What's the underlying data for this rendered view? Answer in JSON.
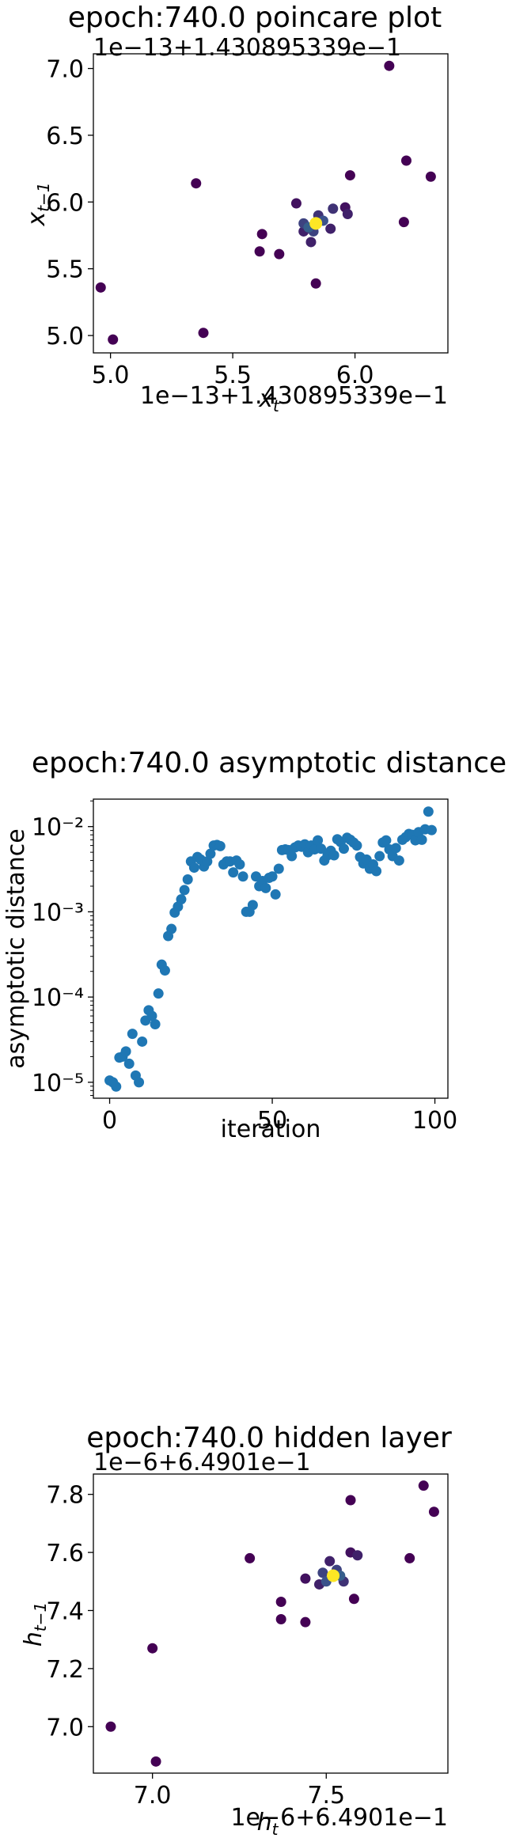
{
  "chart_data": [
    {
      "type": "scatter",
      "title": "epoch:740.0 poincare plot",
      "offset_label": "1e−13+1.430895339e−1",
      "x_offset_label": "1e−13+1.430895339e−1",
      "xlabel": "x_t",
      "ylabel": "x_{t−1}",
      "xlim": [
        4.93,
        6.38
      ],
      "ylim": [
        4.87,
        7.11
      ],
      "xticks": [
        5.0,
        5.5,
        6.0
      ],
      "xtick_labels": [
        "5.0",
        "5.5",
        "6.0"
      ],
      "yticks": [
        5.0,
        5.5,
        6.0,
        6.5,
        7.0
      ],
      "ytick_labels": [
        "5.0",
        "5.5",
        "6.0",
        "6.5",
        "7.0"
      ],
      "colormap": [
        "#440154",
        "#3b528b",
        "#21918c",
        "#5ec962",
        "#fde725"
      ],
      "grid": false,
      "points": [
        {
          "x": 6.14,
          "y": 7.02,
          "c": 0.0
        },
        {
          "x": 6.21,
          "y": 6.31,
          "c": 0.0
        },
        {
          "x": 6.31,
          "y": 6.19,
          "c": 0.0
        },
        {
          "x": 5.35,
          "y": 6.14,
          "c": 0.0
        },
        {
          "x": 5.98,
          "y": 6.2,
          "c": 0.0
        },
        {
          "x": 6.2,
          "y": 5.85,
          "c": 0.0
        },
        {
          "x": 4.96,
          "y": 5.36,
          "c": 0.0
        },
        {
          "x": 5.01,
          "y": 4.97,
          "c": 0.0
        },
        {
          "x": 5.38,
          "y": 5.02,
          "c": 0.0
        },
        {
          "x": 5.61,
          "y": 5.63,
          "c": 0.0
        },
        {
          "x": 5.62,
          "y": 5.76,
          "c": 0.0
        },
        {
          "x": 5.69,
          "y": 5.61,
          "c": 0.0
        },
        {
          "x": 5.84,
          "y": 5.39,
          "c": 0.0
        },
        {
          "x": 5.76,
          "y": 5.99,
          "c": 0.05
        },
        {
          "x": 5.96,
          "y": 5.96,
          "c": 0.05
        },
        {
          "x": 5.79,
          "y": 5.78,
          "c": 0.1
        },
        {
          "x": 5.82,
          "y": 5.7,
          "c": 0.1
        },
        {
          "x": 5.9,
          "y": 5.8,
          "c": 0.1
        },
        {
          "x": 5.97,
          "y": 5.91,
          "c": 0.1
        },
        {
          "x": 5.91,
          "y": 5.95,
          "c": 0.15
        },
        {
          "x": 5.85,
          "y": 5.9,
          "c": 0.15
        },
        {
          "x": 5.79,
          "y": 5.84,
          "c": 0.2
        },
        {
          "x": 5.83,
          "y": 5.78,
          "c": 0.2
        },
        {
          "x": 5.87,
          "y": 5.86,
          "c": 0.25
        },
        {
          "x": 5.81,
          "y": 5.81,
          "c": 0.3
        },
        {
          "x": 5.84,
          "y": 5.84,
          "c": 1.0
        }
      ]
    },
    {
      "type": "scatter",
      "title": "epoch:740.0 asymptotic distance",
      "xlabel": "iteration",
      "ylabel": "asymptotic distance",
      "yscale": "log",
      "xlim": [
        -5,
        104
      ],
      "ylim": [
        6.5e-06,
        0.021
      ],
      "xticks": [
        0,
        50,
        100
      ],
      "xtick_labels": [
        "0",
        "50",
        "100"
      ],
      "yticks": [
        1e-05,
        0.0001,
        0.001,
        0.01
      ],
      "ytick_labels": [
        "10⁻⁵",
        "10⁻⁴",
        "10⁻³",
        "10⁻²"
      ],
      "color": "#1f77b4",
      "grid": false,
      "x": [
        0,
        1,
        2,
        3,
        4,
        5,
        6,
        7,
        8,
        9,
        10,
        11,
        12,
        13,
        14,
        15,
        16,
        17,
        18,
        19,
        20,
        21,
        22,
        23,
        24,
        25,
        26,
        27,
        28,
        29,
        30,
        31,
        32,
        33,
        34,
        35,
        36,
        37,
        38,
        39,
        40,
        41,
        42,
        43,
        44,
        45,
        46,
        47,
        48,
        49,
        50,
        51,
        52,
        53,
        54,
        55,
        56,
        57,
        58,
        59,
        60,
        61,
        62,
        63,
        64,
        65,
        66,
        67,
        68,
        69,
        70,
        71,
        72,
        73,
        74,
        75,
        76,
        77,
        78,
        79,
        80,
        81,
        82,
        83,
        84,
        85,
        86,
        87,
        88,
        89,
        90,
        91,
        92,
        93,
        94,
        95,
        96,
        97,
        98,
        99
      ],
      "y": [
        1.05e-05,
        1e-05,
        8.9e-06,
        1.95e-05,
        2e-05,
        2.3e-05,
        1.65e-05,
        3.7e-05,
        1.2e-05,
        1e-05,
        3e-05,
        5.3e-05,
        7e-05,
        6e-05,
        4.8e-05,
        0.00011,
        0.00024,
        0.000205,
        0.00052,
        0.00063,
        0.00098,
        0.00115,
        0.0014,
        0.0018,
        0.0024,
        0.0039,
        0.0033,
        0.0044,
        0.0041,
        0.0034,
        0.0039,
        0.0048,
        0.006,
        0.0061,
        0.0059,
        0.0036,
        0.0039,
        0.0039,
        0.0029,
        0.004,
        0.0036,
        0.0026,
        0.001,
        0.001,
        0.0012,
        0.0026,
        0.002,
        0.0023,
        0.0019,
        0.0025,
        0.0026,
        0.0016,
        0.0032,
        0.0053,
        0.0054,
        0.0053,
        0.0045,
        0.0057,
        0.006,
        0.0058,
        0.0062,
        0.005,
        0.006,
        0.0054,
        0.0069,
        0.0055,
        0.004,
        0.0046,
        0.0052,
        0.0046,
        0.0071,
        0.0066,
        0.0055,
        0.0074,
        0.007,
        0.0065,
        0.006,
        0.0044,
        0.0037,
        0.0041,
        0.0032,
        0.0036,
        0.003,
        0.0045,
        0.0065,
        0.0069,
        0.0054,
        0.0045,
        0.0056,
        0.004,
        0.007,
        0.0075,
        0.0082,
        0.008,
        0.0069,
        0.0086,
        0.007,
        0.0093,
        0.015,
        0.0091
      ]
    },
    {
      "type": "scatter",
      "title": "epoch:740.0 hidden layer",
      "offset_label": "1e−6+6.4901e−1",
      "x_offset_label": "1e−6+6.4901e−1",
      "xlabel": "h_t",
      "ylabel": "h_{t−1}",
      "xlim": [
        6.83,
        7.85
      ],
      "ylim": [
        6.84,
        7.87
      ],
      "xticks": [
        7.0,
        7.5
      ],
      "xtick_labels": [
        "7.0",
        "7.5"
      ],
      "yticks": [
        7.0,
        7.2,
        7.4,
        7.6,
        7.8
      ],
      "ytick_labels": [
        "7.0",
        "7.2",
        "7.4",
        "7.6",
        "7.8"
      ],
      "colormap": [
        "#440154",
        "#3b528b",
        "#21918c",
        "#5ec962",
        "#fde725"
      ],
      "grid": false,
      "points": [
        {
          "x": 7.78,
          "y": 7.83,
          "c": 0.0
        },
        {
          "x": 7.81,
          "y": 7.74,
          "c": 0.0
        },
        {
          "x": 7.57,
          "y": 7.78,
          "c": 0.0
        },
        {
          "x": 7.28,
          "y": 7.58,
          "c": 0.0
        },
        {
          "x": 7.74,
          "y": 7.58,
          "c": 0.0
        },
        {
          "x": 7.37,
          "y": 7.43,
          "c": 0.0
        },
        {
          "x": 7.37,
          "y": 7.37,
          "c": 0.0
        },
        {
          "x": 7.44,
          "y": 7.36,
          "c": 0.0
        },
        {
          "x": 7.58,
          "y": 7.44,
          "c": 0.0
        },
        {
          "x": 7.0,
          "y": 7.27,
          "c": 0.0
        },
        {
          "x": 6.88,
          "y": 7.0,
          "c": 0.0
        },
        {
          "x": 7.01,
          "y": 6.88,
          "c": 0.0
        },
        {
          "x": 7.44,
          "y": 7.51,
          "c": 0.05
        },
        {
          "x": 7.57,
          "y": 7.6,
          "c": 0.05
        },
        {
          "x": 7.59,
          "y": 7.59,
          "c": 0.1
        },
        {
          "x": 7.51,
          "y": 7.57,
          "c": 0.1
        },
        {
          "x": 7.48,
          "y": 7.49,
          "c": 0.1
        },
        {
          "x": 7.55,
          "y": 7.5,
          "c": 0.15
        },
        {
          "x": 7.49,
          "y": 7.53,
          "c": 0.2
        },
        {
          "x": 7.53,
          "y": 7.54,
          "c": 0.2
        },
        {
          "x": 7.5,
          "y": 7.5,
          "c": 0.25
        },
        {
          "x": 7.54,
          "y": 7.52,
          "c": 0.3
        },
        {
          "x": 7.52,
          "y": 7.52,
          "c": 1.0
        }
      ]
    }
  ]
}
